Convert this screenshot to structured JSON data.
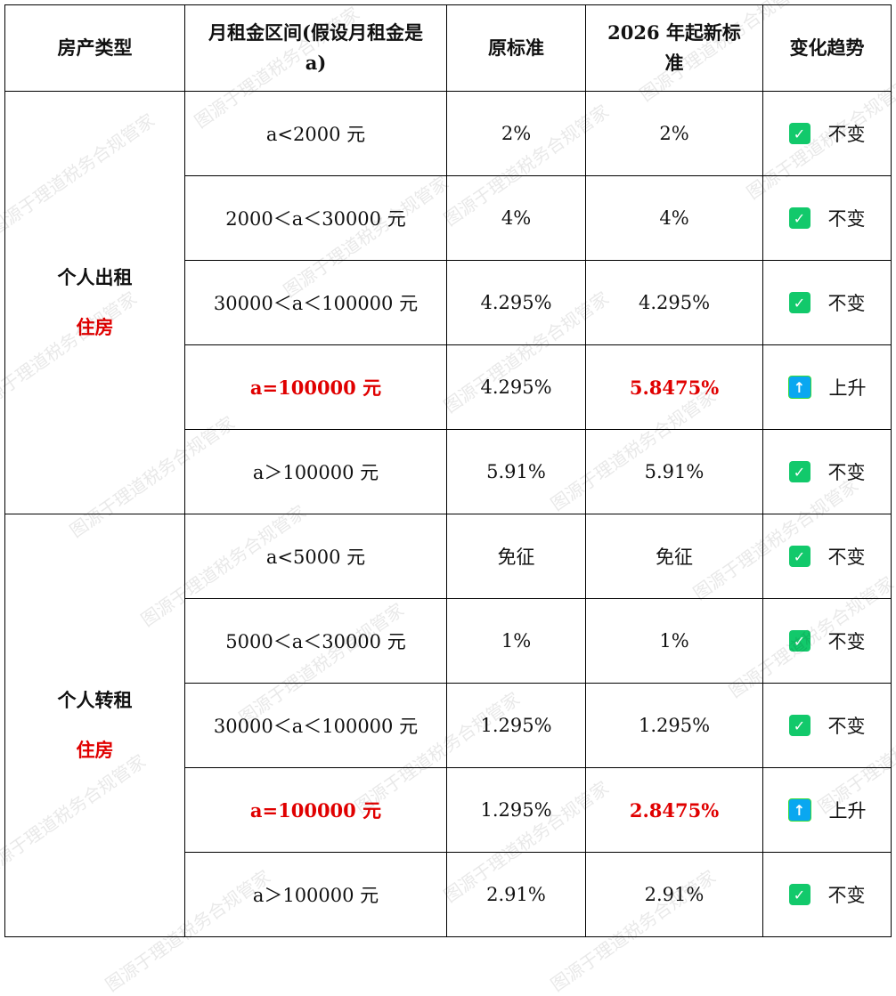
{
  "headers": [
    "房产类型",
    "月租金区间(假设月租金是 a)",
    "原标准",
    "2026 年起新标准",
    "变化趋势"
  ],
  "groups": [
    {
      "type_line1": "个人出租",
      "type_line2": "住房",
      "rows": [
        {
          "range": "a<2000 元",
          "old": "2%",
          "new": "2%",
          "trend": "不变",
          "icon": "check-icon",
          "highlight": false
        },
        {
          "range": "2000＜a＜30000 元",
          "old": "4%",
          "new": "4%",
          "trend": "不变",
          "icon": "check-icon",
          "highlight": false
        },
        {
          "range": "30000＜a＜100000 元",
          "old": "4.295%",
          "new": "4.295%",
          "trend": "不变",
          "icon": "check-icon",
          "highlight": false
        },
        {
          "range": "a=100000 元",
          "old": "4.295%",
          "new": "5.8475%",
          "trend": "上升",
          "icon": "arrow-up-icon",
          "highlight": true
        },
        {
          "range": "a＞100000 元",
          "old": "5.91%",
          "new": "5.91%",
          "trend": "不变",
          "icon": "check-icon",
          "highlight": false
        }
      ]
    },
    {
      "type_line1": "个人转租",
      "type_line2": "住房",
      "rows": [
        {
          "range": "a<5000 元",
          "old": "免征",
          "new": "免征",
          "trend": "不变",
          "icon": "check-icon",
          "highlight": false
        },
        {
          "range": "5000＜a＜30000 元",
          "old": "1%",
          "new": "1%",
          "trend": "不变",
          "icon": "check-icon",
          "highlight": false
        },
        {
          "range": "30000＜a＜100000 元",
          "old": "1.295%",
          "new": "1.295%",
          "trend": "不变",
          "icon": "check-icon",
          "highlight": false
        },
        {
          "range": "a=100000 元",
          "old": "1.295%",
          "new": "2.8475%",
          "trend": "上升",
          "icon": "arrow-up-icon",
          "highlight": true
        },
        {
          "range": "a＞100000 元",
          "old": "2.91%",
          "new": "2.91%",
          "trend": "不变",
          "icon": "check-icon",
          "highlight": false
        }
      ]
    }
  ],
  "watermark": "图源于理道税务合规管家",
  "colors": {
    "highlight": "#e00000",
    "check": "#12c96b",
    "up": "#0aa7f0"
  }
}
